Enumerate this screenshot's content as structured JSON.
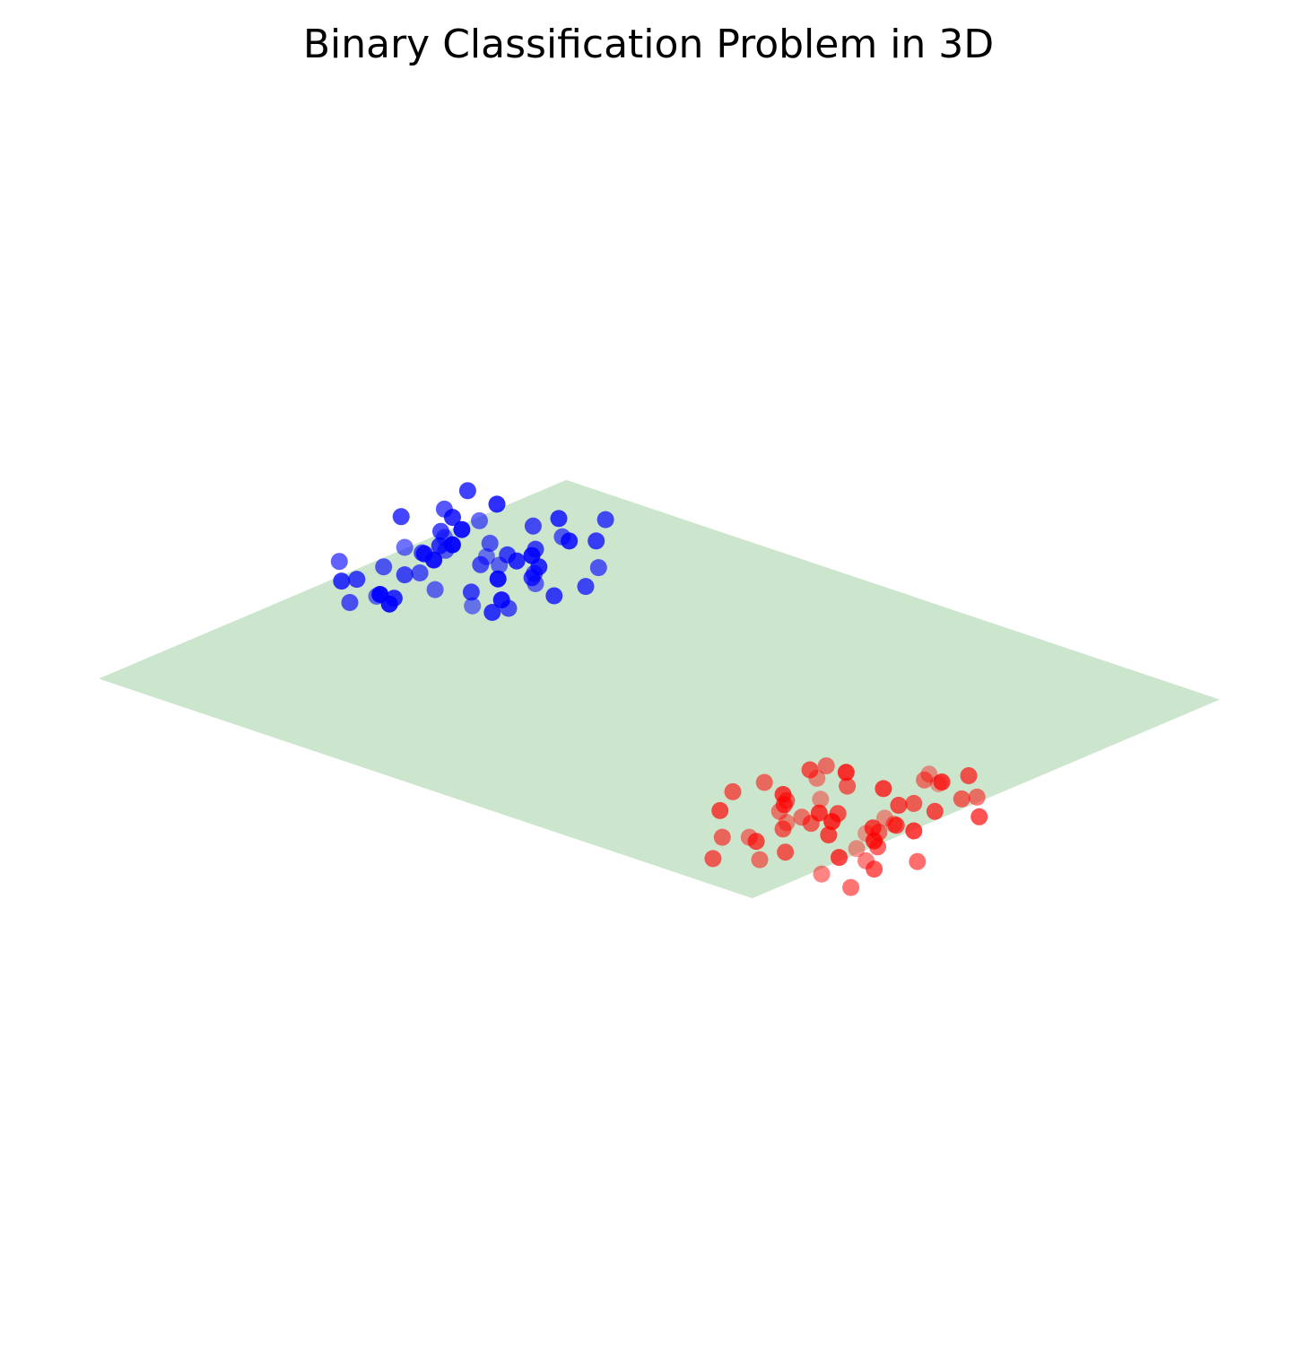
{
  "chart_data": {
    "type": "scatter",
    "title": "Binary Classification Problem in 3D",
    "projection": "3d",
    "axes_visible": false,
    "grid": false,
    "legend": "none",
    "colors": {
      "class_0": "#0000ff",
      "class_1": "#ff0000",
      "decision_plane": "#8fc793"
    },
    "decision_plane": {
      "equation": "z = 0.55*x + 0.55*y",
      "x_range": [
        -4,
        4
      ],
      "y_range": [
        -4,
        4
      ]
    },
    "series": [
      {
        "values": [
          [
            -1.6,
            0.6,
            1.9
          ],
          [
            -1.2,
            1.0,
            2.1
          ],
          [
            -1.4,
            1.3,
            1.5
          ],
          [
            -1.0,
            0.8,
            2.2
          ],
          [
            -0.8,
            1.5,
            2.4
          ],
          [
            -1.7,
            1.9,
            1.8
          ],
          [
            -2.2,
            0.4,
            1.5
          ],
          [
            -2.6,
            0.9,
            1.8
          ],
          [
            -1.3,
            0.3,
            2.6
          ],
          [
            -0.6,
            1.1,
            1.9
          ],
          [
            -1.8,
            1.4,
            2.2
          ],
          [
            -0.9,
            2.1,
            1.7
          ],
          [
            -1.1,
            0.5,
            1.4
          ],
          [
            -2.0,
            1.1,
            2.6
          ],
          [
            -1.5,
            2.3,
            2.0
          ],
          [
            -0.4,
            0.9,
            2.5
          ],
          [
            -1.9,
            0.2,
            1.9
          ],
          [
            -1.3,
            1.7,
            2.9
          ],
          [
            -0.7,
            0.4,
            1.6
          ],
          [
            -2.3,
            1.6,
            1.3
          ],
          [
            -1.0,
            1.9,
            2.3
          ],
          [
            -1.6,
            0.9,
            1.1
          ],
          [
            -0.5,
            1.6,
            2.1
          ],
          [
            -1.2,
            2.6,
            1.6
          ],
          [
            -2.8,
            1.3,
            1.1
          ],
          [
            -1.4,
            0.1,
            2.2
          ],
          [
            -0.3,
            1.3,
            1.8
          ],
          [
            -2.1,
            2.2,
            1.7
          ],
          [
            -1.8,
            0.7,
            2.8
          ],
          [
            -0.9,
            1.2,
            1.3
          ],
          [
            -1.5,
            1.6,
            2.5
          ],
          [
            -2.4,
            0.7,
            2.3
          ],
          [
            -0.6,
            2.2,
            2.6
          ],
          [
            -1.1,
            1.4,
            2.0
          ],
          [
            -1.7,
            2.7,
            2.1
          ],
          [
            -0.2,
            0.6,
            2.0
          ],
          [
            -2.0,
            0.5,
            1.2
          ],
          [
            -1.3,
            2.0,
            1.9
          ],
          [
            -0.8,
            0.2,
            2.3
          ],
          [
            -1.9,
            1.8,
            2.7
          ],
          [
            -3.1,
            1.2,
            1.2
          ],
          [
            -0.4,
            2.0,
            1.5
          ],
          [
            -1.6,
            1.2,
            3.1
          ],
          [
            -2.5,
            2.1,
            1.6
          ],
          [
            -0.7,
            1.7,
            2.8
          ],
          [
            -1.2,
            0.7,
            1.7
          ],
          [
            -2.2,
            1.3,
            2.0
          ],
          [
            -1.0,
            2.4,
            2.4
          ],
          [
            -1.8,
            2.5,
            1.4
          ],
          [
            -0.5,
            0.3,
            2.7
          ],
          [
            -1.4,
            1.9,
            2.2
          ],
          [
            -2.7,
            0.6,
            2.0
          ],
          [
            -0.9,
            0.9,
            2.6
          ],
          [
            -1.5,
            0.4,
            1.8
          ],
          [
            -0.3,
            1.9,
            2.3
          ]
        ]
      },
      {
        "values": [
          [
            1.6,
            -0.6,
            -1.9
          ],
          [
            1.2,
            -1.0,
            -2.1
          ],
          [
            1.4,
            -1.3,
            -1.5
          ],
          [
            1.0,
            -0.8,
            -2.2
          ],
          [
            0.8,
            -1.5,
            -2.4
          ],
          [
            1.7,
            -1.9,
            -1.8
          ],
          [
            2.2,
            -0.4,
            -1.5
          ],
          [
            2.6,
            -0.9,
            -1.8
          ],
          [
            1.3,
            -0.3,
            -2.6
          ],
          [
            0.6,
            -1.1,
            -1.9
          ],
          [
            1.8,
            -1.4,
            -2.2
          ],
          [
            0.9,
            -2.1,
            -1.7
          ],
          [
            1.1,
            -0.5,
            -1.4
          ],
          [
            2.0,
            -1.1,
            -2.6
          ],
          [
            1.5,
            -2.3,
            -2.0
          ],
          [
            0.4,
            -0.9,
            -2.5
          ],
          [
            1.9,
            -0.2,
            -1.9
          ],
          [
            1.3,
            -1.7,
            -2.9
          ],
          [
            0.7,
            -0.4,
            -1.6
          ],
          [
            2.3,
            -1.6,
            -1.3
          ],
          [
            1.0,
            -1.9,
            -2.3
          ],
          [
            1.6,
            -0.9,
            -1.1
          ],
          [
            0.5,
            -1.6,
            -2.1
          ],
          [
            1.2,
            -2.6,
            -1.6
          ],
          [
            2.8,
            -1.3,
            -1.1
          ],
          [
            1.4,
            -0.1,
            -2.2
          ],
          [
            0.3,
            -1.3,
            -1.8
          ],
          [
            2.1,
            -2.2,
            -1.7
          ],
          [
            1.8,
            -0.7,
            -2.8
          ],
          [
            0.9,
            -1.2,
            -1.3
          ],
          [
            1.5,
            -1.6,
            -2.5
          ],
          [
            2.4,
            -0.7,
            -2.3
          ],
          [
            0.6,
            -2.2,
            -2.6
          ],
          [
            1.1,
            -1.4,
            -2.0
          ],
          [
            1.7,
            -2.7,
            -2.1
          ],
          [
            0.2,
            -0.6,
            -2.0
          ],
          [
            2.0,
            -0.5,
            -1.2
          ],
          [
            1.3,
            -2.0,
            -1.9
          ],
          [
            0.8,
            -0.2,
            -2.3
          ],
          [
            1.9,
            -1.8,
            -2.7
          ],
          [
            3.1,
            -1.2,
            -1.2
          ],
          [
            0.4,
            -2.0,
            -1.5
          ],
          [
            1.6,
            -1.2,
            -3.1
          ],
          [
            2.5,
            -2.1,
            -1.6
          ],
          [
            0.7,
            -1.7,
            -2.8
          ],
          [
            1.2,
            -0.7,
            -1.7
          ],
          [
            2.2,
            -1.3,
            -2.0
          ],
          [
            1.0,
            -2.4,
            -2.4
          ],
          [
            1.8,
            -2.5,
            -1.4
          ],
          [
            0.5,
            -0.3,
            -2.7
          ],
          [
            1.4,
            -1.9,
            -2.2
          ],
          [
            2.7,
            -0.6,
            -2.0
          ],
          [
            0.9,
            -0.9,
            -2.6
          ],
          [
            1.5,
            -0.4,
            -1.8
          ],
          [
            0.3,
            -1.9,
            -2.3
          ]
        ]
      }
    ]
  }
}
